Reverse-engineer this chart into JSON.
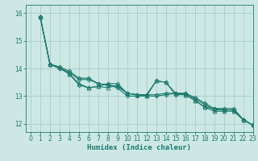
{
  "title": "",
  "xlabel": "Humidex (Indice chaleur)",
  "ylabel": "",
  "bg_color": "#cde8e4",
  "grid_color": "#aaccc8",
  "line_color": "#1a7a6e",
  "xlim": [
    -0.5,
    23
  ],
  "ylim": [
    11.7,
    16.3
  ],
  "xticks": [
    0,
    1,
    2,
    3,
    4,
    5,
    6,
    7,
    8,
    9,
    10,
    11,
    12,
    13,
    14,
    15,
    16,
    17,
    18,
    19,
    20,
    21,
    22,
    23
  ],
  "yticks": [
    12,
    13,
    14,
    15,
    16
  ],
  "series": [
    [
      15.85,
      14.15,
      14.0,
      13.8,
      13.4,
      13.3,
      13.35,
      13.45,
      13.45,
      13.1,
      13.05,
      13.05,
      13.55,
      13.5,
      13.05,
      13.05,
      12.85,
      12.6,
      12.55,
      12.5,
      12.5,
      12.15,
      11.95
    ],
    [
      15.85,
      14.15,
      14.05,
      13.9,
      13.65,
      13.65,
      13.45,
      13.4,
      13.35,
      13.1,
      13.05,
      13.05,
      13.05,
      13.1,
      13.1,
      13.1,
      12.95,
      12.75,
      12.55,
      12.55,
      12.55,
      12.15,
      11.95
    ],
    [
      15.85,
      14.15,
      14.05,
      13.8,
      13.45,
      13.3,
      13.35,
      13.3,
      13.4,
      13.1,
      13.05,
      13.0,
      13.55,
      13.5,
      13.1,
      13.05,
      12.85,
      12.6,
      12.45,
      12.45,
      12.45,
      12.15,
      11.95
    ],
    [
      15.85,
      14.15,
      14.0,
      13.85,
      13.6,
      13.6,
      13.45,
      13.4,
      13.3,
      13.0,
      13.0,
      13.0,
      13.0,
      13.05,
      13.1,
      13.1,
      12.9,
      12.7,
      12.5,
      12.5,
      12.5,
      12.15,
      11.95
    ]
  ],
  "x_start": 1,
  "markers": [
    "D",
    "D",
    "^",
    "D"
  ],
  "marker_sizes": [
    2.5,
    2.5,
    3.5,
    2.5
  ],
  "linewidths": [
    0.8,
    0.8,
    0.8,
    0.8
  ]
}
